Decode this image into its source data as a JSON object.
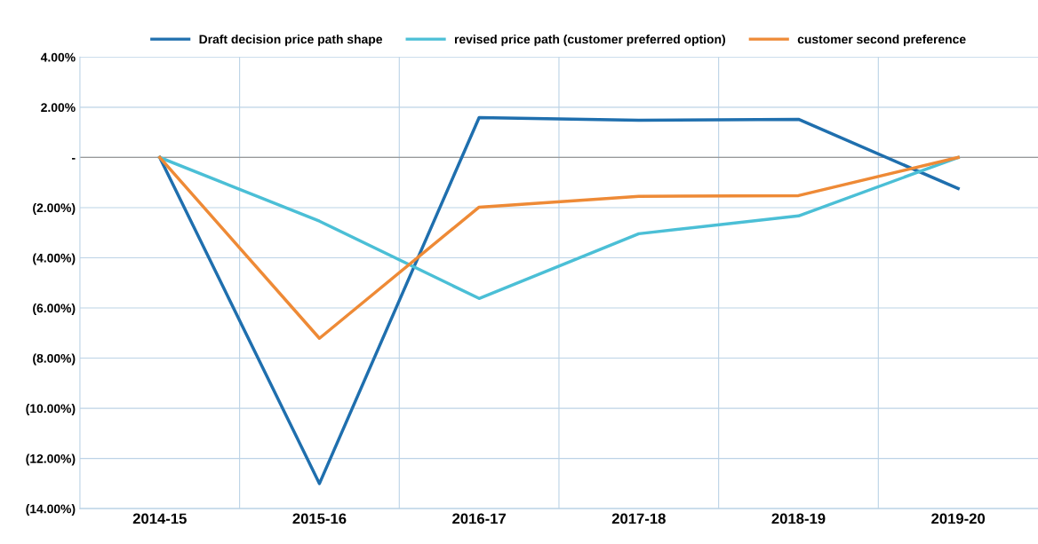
{
  "chart_data": {
    "type": "line",
    "categories": [
      "2014-15",
      "2015-16",
      "2016-17",
      "2017-18",
      "2018-19",
      "2019-20"
    ],
    "series": [
      {
        "name": "Draft decision price path shape",
        "color": "#1f6fae",
        "values": [
          0,
          -13.0,
          1.59,
          1.48,
          1.52,
          -1.24
        ]
      },
      {
        "name": "revised price path (customer preferred option)",
        "color": "#4bbfd6",
        "values": [
          0,
          -2.54,
          -5.62,
          -3.04,
          -2.33,
          0
        ]
      },
      {
        "name": "customer second preference",
        "color": "#ee8a36",
        "values": [
          0,
          -7.21,
          -1.98,
          -1.55,
          -1.52,
          0
        ]
      }
    ],
    "ylim": [
      -14,
      4
    ],
    "yticks": [
      {
        "value": 4,
        "label": "4.00%"
      },
      {
        "value": 2,
        "label": "2.00%"
      },
      {
        "value": 0,
        "label": "-"
      },
      {
        "value": -2,
        "label": "(2.00%)"
      },
      {
        "value": -4,
        "label": "(4.00%)"
      },
      {
        "value": -6,
        "label": "(6.00%)"
      },
      {
        "value": -8,
        "label": "(8.00%)"
      },
      {
        "value": -10,
        "label": "(10.00%)"
      },
      {
        "value": -12,
        "label": "(12.00%)"
      },
      {
        "value": -14,
        "label": "(14.00%)"
      }
    ],
    "grid": true,
    "legend": "top",
    "marker": "none",
    "line_style": "solid"
  }
}
